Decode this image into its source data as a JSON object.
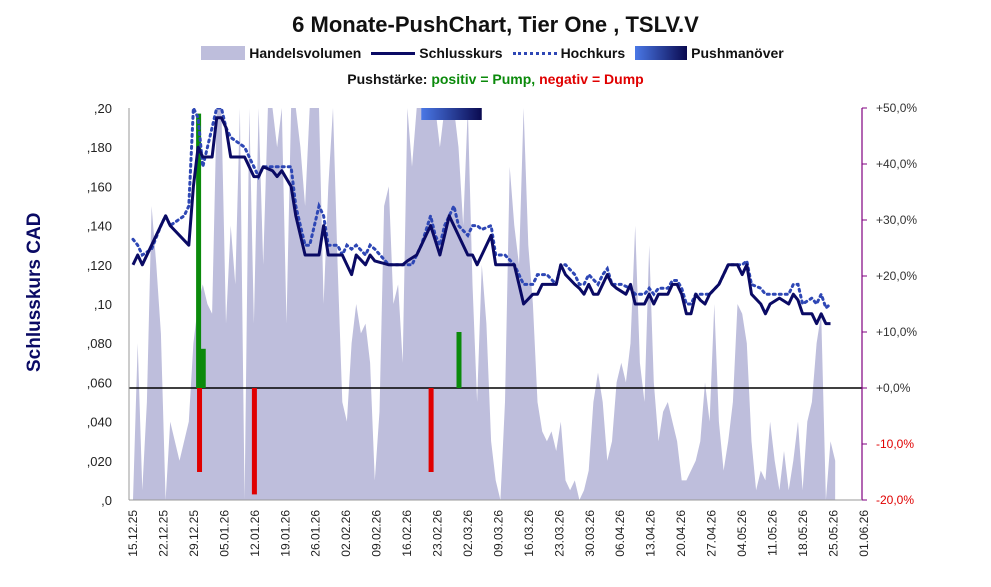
{
  "chart_data": {
    "type": "line",
    "title": "6 Monate-PushChart, Tier One , TSLV.V",
    "legend": {
      "volume": "Handelsvolumen",
      "close": "Schlusskurs",
      "high": "Hochkurs",
      "push": "Pushmanöver"
    },
    "push_note": {
      "prefix": "Pushstärke:",
      "positive": "positiv = Pump,",
      "negative": "negativ = Dump"
    },
    "ylabel": "Schlusskurs CAD",
    "ylim": [
      0,
      0.2
    ],
    "y_ticks": [
      ",0",
      ",020",
      ",040",
      ",060",
      ",080",
      ",10",
      ",120",
      ",140",
      ",160",
      ",180",
      ",20"
    ],
    "y2_ticks": [
      "-20,0%",
      "-10,0%",
      "+0,0%",
      "+10,0%",
      "+20,0%",
      "+30,0%",
      "+40,0%",
      "+50,0%"
    ],
    "y2lim": [
      -20,
      50
    ],
    "x_ticks": [
      "15.12.25",
      "22.12.25",
      "29.12.25",
      "05.01.26",
      "12.01.26",
      "19.01.26",
      "26.01.26",
      "02.02.26",
      "09.02.26",
      "16.02.26",
      "23.02.26",
      "02.03.26",
      "09.03.26",
      "16.03.26",
      "23.03.26",
      "30.03.26",
      "06.04.26",
      "13.04.26",
      "20.04.26",
      "27.04.26",
      "04.05.26",
      "11.05.26",
      "18.05.26",
      "25.05.26",
      "01.06.26"
    ],
    "close": [
      [
        0,
        0.12
      ],
      [
        1,
        0.125
      ],
      [
        2,
        0.12
      ],
      [
        4,
        0.13
      ],
      [
        6,
        0.14
      ],
      [
        7,
        0.145
      ],
      [
        8,
        0.14
      ],
      [
        12,
        0.13
      ],
      [
        13,
        0.16
      ],
      [
        14,
        0.18
      ],
      [
        15,
        0.175
      ],
      [
        17,
        0.175
      ],
      [
        18,
        0.195
      ],
      [
        19,
        0.195
      ],
      [
        20,
        0.19
      ],
      [
        21,
        0.175
      ],
      [
        24,
        0.175
      ],
      [
        26,
        0.165
      ],
      [
        27,
        0.165
      ],
      [
        28,
        0.17
      ],
      [
        30,
        0.168
      ],
      [
        31,
        0.165
      ],
      [
        32,
        0.168
      ],
      [
        34,
        0.16
      ],
      [
        35,
        0.145
      ],
      [
        37,
        0.125
      ],
      [
        40,
        0.125
      ],
      [
        41,
        0.14
      ],
      [
        42,
        0.125
      ],
      [
        45,
        0.125
      ],
      [
        46,
        0.12
      ],
      [
        47,
        0.115
      ],
      [
        48,
        0.125
      ],
      [
        50,
        0.12
      ],
      [
        51,
        0.125
      ],
      [
        52,
        0.122
      ],
      [
        55,
        0.12
      ],
      [
        58,
        0.12
      ],
      [
        59,
        0.122
      ],
      [
        61,
        0.125
      ],
      [
        63,
        0.135
      ],
      [
        64,
        0.14
      ],
      [
        66,
        0.125
      ],
      [
        67,
        0.135
      ],
      [
        68,
        0.145
      ],
      [
        70,
        0.135
      ],
      [
        72,
        0.125
      ],
      [
        73,
        0.125
      ],
      [
        74,
        0.12
      ],
      [
        75,
        0.125
      ],
      [
        77,
        0.135
      ],
      [
        78,
        0.12
      ],
      [
        82,
        0.12
      ],
      [
        83,
        0.11
      ],
      [
        84,
        0.1
      ],
      [
        86,
        0.105
      ],
      [
        87,
        0.105
      ],
      [
        88,
        0.11
      ],
      [
        89,
        0.11
      ],
      [
        91,
        0.11
      ],
      [
        92,
        0.12
      ],
      [
        93,
        0.115
      ],
      [
        95,
        0.11
      ],
      [
        96,
        0.108
      ],
      [
        97,
        0.105
      ],
      [
        98,
        0.11
      ],
      [
        99,
        0.105
      ],
      [
        100,
        0.105
      ],
      [
        101,
        0.11
      ],
      [
        102,
        0.115
      ],
      [
        103,
        0.11
      ],
      [
        104,
        0.108
      ],
      [
        106,
        0.105
      ],
      [
        107,
        0.11
      ],
      [
        108,
        0.1
      ],
      [
        109,
        0.1
      ],
      [
        110,
        0.1
      ],
      [
        111,
        0.105
      ],
      [
        112,
        0.1
      ],
      [
        113,
        0.105
      ],
      [
        115,
        0.105
      ],
      [
        116,
        0.11
      ],
      [
        117,
        0.11
      ],
      [
        118,
        0.105
      ],
      [
        119,
        0.095
      ],
      [
        120,
        0.095
      ],
      [
        121,
        0.105
      ],
      [
        122,
        0.102
      ],
      [
        123,
        0.1
      ],
      [
        124,
        0.105
      ],
      [
        126,
        0.11
      ],
      [
        128,
        0.12
      ],
      [
        130,
        0.12
      ],
      [
        131,
        0.115
      ],
      [
        132,
        0.12
      ],
      [
        133,
        0.105
      ],
      [
        135,
        0.1
      ],
      [
        136,
        0.095
      ],
      [
        137,
        0.1
      ],
      [
        139,
        0.103
      ],
      [
        141,
        0.1
      ],
      [
        142,
        0.105
      ],
      [
        143,
        0.102
      ],
      [
        144,
        0.095
      ],
      [
        146,
        0.095
      ],
      [
        147,
        0.09
      ],
      [
        148,
        0.095
      ],
      [
        149,
        0.09
      ],
      [
        150,
        0.09
      ]
    ],
    "high": [
      [
        0,
        0.133
      ],
      [
        1,
        0.13
      ],
      [
        2,
        0.125
      ],
      [
        4,
        0.128
      ],
      [
        6,
        0.14
      ],
      [
        7,
        0.145
      ],
      [
        8,
        0.14
      ],
      [
        11,
        0.145
      ],
      [
        12,
        0.15
      ],
      [
        13,
        0.2
      ],
      [
        14,
        0.195
      ],
      [
        15,
        0.17
      ],
      [
        17,
        0.19
      ],
      [
        18,
        0.2
      ],
      [
        19,
        0.2
      ],
      [
        20,
        0.19
      ],
      [
        21,
        0.185
      ],
      [
        24,
        0.18
      ],
      [
        26,
        0.17
      ],
      [
        27,
        0.165
      ],
      [
        28,
        0.17
      ],
      [
        34,
        0.17
      ],
      [
        35,
        0.15
      ],
      [
        36,
        0.14
      ],
      [
        37,
        0.13
      ],
      [
        38,
        0.13
      ],
      [
        39,
        0.14
      ],
      [
        40,
        0.15
      ],
      [
        41,
        0.145
      ],
      [
        42,
        0.13
      ],
      [
        44,
        0.13
      ],
      [
        45,
        0.125
      ],
      [
        46,
        0.13
      ],
      [
        47,
        0.128
      ],
      [
        48,
        0.13
      ],
      [
        50,
        0.125
      ],
      [
        51,
        0.13
      ],
      [
        52,
        0.128
      ],
      [
        55,
        0.12
      ],
      [
        60,
        0.12
      ],
      [
        62,
        0.13
      ],
      [
        64,
        0.145
      ],
      [
        65,
        0.135
      ],
      [
        66,
        0.13
      ],
      [
        67,
        0.14
      ],
      [
        69,
        0.15
      ],
      [
        70,
        0.14
      ],
      [
        72,
        0.135
      ],
      [
        73,
        0.14
      ],
      [
        74,
        0.14
      ],
      [
        75,
        0.138
      ],
      [
        77,
        0.14
      ],
      [
        78,
        0.125
      ],
      [
        80,
        0.125
      ],
      [
        82,
        0.12
      ],
      [
        83,
        0.115
      ],
      [
        84,
        0.11
      ],
      [
        86,
        0.11
      ],
      [
        87,
        0.115
      ],
      [
        88,
        0.115
      ],
      [
        89,
        0.115
      ],
      [
        91,
        0.11
      ],
      [
        92,
        0.12
      ],
      [
        93,
        0.12
      ],
      [
        95,
        0.115
      ],
      [
        96,
        0.11
      ],
      [
        97,
        0.11
      ],
      [
        98,
        0.115
      ],
      [
        100,
        0.11
      ],
      [
        101,
        0.115
      ],
      [
        102,
        0.118
      ],
      [
        103,
        0.11
      ],
      [
        104,
        0.11
      ],
      [
        105,
        0.11
      ],
      [
        107,
        0.108
      ],
      [
        108,
        0.105
      ],
      [
        110,
        0.105
      ],
      [
        111,
        0.108
      ],
      [
        112,
        0.105
      ],
      [
        113,
        0.108
      ],
      [
        115,
        0.108
      ],
      [
        116,
        0.112
      ],
      [
        117,
        0.112
      ],
      [
        118,
        0.108
      ],
      [
        119,
        0.1
      ],
      [
        120,
        0.1
      ],
      [
        121,
        0.105
      ],
      [
        123,
        0.105
      ],
      [
        124,
        0.105
      ],
      [
        126,
        0.11
      ],
      [
        128,
        0.12
      ],
      [
        130,
        0.12
      ],
      [
        131,
        0.12
      ],
      [
        132,
        0.122
      ],
      [
        133,
        0.11
      ],
      [
        135,
        0.108
      ],
      [
        136,
        0.105
      ],
      [
        137,
        0.105
      ],
      [
        139,
        0.105
      ],
      [
        141,
        0.105
      ],
      [
        142,
        0.11
      ],
      [
        143,
        0.11
      ],
      [
        144,
        0.1
      ],
      [
        146,
        0.103
      ],
      [
        147,
        0.1
      ],
      [
        148,
        0.105
      ],
      [
        149,
        0.098
      ],
      [
        150,
        0.1
      ]
    ],
    "volume": [
      [
        0,
        0.0
      ],
      [
        1,
        0.08
      ],
      [
        2,
        0.005
      ],
      [
        3,
        0.05
      ],
      [
        4,
        0.15
      ],
      [
        5,
        0.12
      ],
      [
        6,
        0.085
      ],
      [
        7,
        0.0
      ],
      [
        8,
        0.04
      ],
      [
        10,
        0.02
      ],
      [
        12,
        0.04
      ],
      [
        13,
        0.08
      ],
      [
        14,
        0.1
      ],
      [
        15,
        0.11
      ],
      [
        16,
        0.1
      ],
      [
        17,
        0.095
      ],
      [
        18,
        0.25
      ],
      [
        19,
        0.25
      ],
      [
        20,
        0.09
      ],
      [
        21,
        0.14
      ],
      [
        22,
        0.11
      ],
      [
        23,
        0.22
      ],
      [
        24,
        0.0
      ],
      [
        25,
        0.22
      ],
      [
        26,
        0.09
      ],
      [
        27,
        0.22
      ],
      [
        28,
        0.12
      ],
      [
        29,
        0.21
      ],
      [
        30,
        0.24
      ],
      [
        31,
        0.18
      ],
      [
        32,
        0.2
      ],
      [
        33,
        0.09
      ],
      [
        34,
        0.2
      ],
      [
        35,
        0.22
      ],
      [
        36,
        0.18
      ],
      [
        37,
        0.15
      ],
      [
        38,
        0.2
      ],
      [
        39,
        0.22
      ],
      [
        40,
        0.21
      ],
      [
        41,
        0.1
      ],
      [
        42,
        0.16
      ],
      [
        43,
        0.22
      ],
      [
        44,
        0.12
      ],
      [
        45,
        0.05
      ],
      [
        46,
        0.04
      ],
      [
        47,
        0.08
      ],
      [
        48,
        0.1
      ],
      [
        49,
        0.085
      ],
      [
        50,
        0.09
      ],
      [
        51,
        0.07
      ],
      [
        52,
        0.01
      ],
      [
        53,
        0.045
      ],
      [
        54,
        0.15
      ],
      [
        55,
        0.16
      ],
      [
        56,
        0.1
      ],
      [
        57,
        0.11
      ],
      [
        58,
        0.07
      ],
      [
        59,
        0.22
      ],
      [
        60,
        0.17
      ],
      [
        61,
        0.22
      ],
      [
        62,
        0.2
      ],
      [
        63,
        0.22
      ],
      [
        64,
        0.21
      ],
      [
        65,
        0.22
      ],
      [
        66,
        0.18
      ],
      [
        67,
        0.22
      ],
      [
        68,
        0.2
      ],
      [
        69,
        0.22
      ],
      [
        70,
        0.18
      ],
      [
        71,
        0.14
      ],
      [
        72,
        0.22
      ],
      [
        73,
        0.11
      ],
      [
        74,
        0.05
      ],
      [
        75,
        0.12
      ],
      [
        76,
        0.09
      ],
      [
        77,
        0.03
      ],
      [
        78,
        0.01
      ],
      [
        79,
        0.0
      ],
      [
        80,
        0.05
      ],
      [
        81,
        0.17
      ],
      [
        82,
        0.14
      ],
      [
        83,
        0.12
      ],
      [
        84,
        0.22
      ],
      [
        85,
        0.13
      ],
      [
        86,
        0.1
      ],
      [
        87,
        0.05
      ],
      [
        88,
        0.035
      ],
      [
        89,
        0.03
      ],
      [
        90,
        0.035
      ],
      [
        91,
        0.025
      ],
      [
        92,
        0.04
      ],
      [
        93,
        0.01
      ],
      [
        94,
        0.005
      ],
      [
        95,
        0.01
      ],
      [
        96,
        0.0
      ],
      [
        97,
        0.005
      ],
      [
        98,
        0.015
      ],
      [
        99,
        0.05
      ],
      [
        100,
        0.065
      ],
      [
        101,
        0.05
      ],
      [
        102,
        0.02
      ],
      [
        103,
        0.03
      ],
      [
        104,
        0.06
      ],
      [
        105,
        0.07
      ],
      [
        106,
        0.06
      ],
      [
        107,
        0.08
      ],
      [
        108,
        0.14
      ],
      [
        109,
        0.07
      ],
      [
        110,
        0.05
      ],
      [
        111,
        0.13
      ],
      [
        112,
        0.06
      ],
      [
        113,
        0.03
      ],
      [
        114,
        0.045
      ],
      [
        115,
        0.05
      ],
      [
        116,
        0.04
      ],
      [
        117,
        0.03
      ],
      [
        118,
        0.01
      ],
      [
        119,
        0.01
      ],
      [
        120,
        0.015
      ],
      [
        121,
        0.02
      ],
      [
        122,
        0.03
      ],
      [
        123,
        0.06
      ],
      [
        124,
        0.04
      ],
      [
        125,
        0.1
      ],
      [
        126,
        0.04
      ],
      [
        127,
        0.015
      ],
      [
        128,
        0.03
      ],
      [
        129,
        0.05
      ],
      [
        130,
        0.1
      ],
      [
        131,
        0.095
      ],
      [
        132,
        0.08
      ],
      [
        133,
        0.03
      ],
      [
        134,
        0.005
      ],
      [
        135,
        0.015
      ],
      [
        136,
        0.01
      ],
      [
        137,
        0.04
      ],
      [
        138,
        0.02
      ],
      [
        139,
        0.005
      ],
      [
        140,
        0.025
      ],
      [
        141,
        0.005
      ],
      [
        142,
        0.02
      ],
      [
        143,
        0.04
      ],
      [
        144,
        0.005
      ],
      [
        145,
        0.04
      ],
      [
        146,
        0.05
      ],
      [
        147,
        0.08
      ],
      [
        148,
        0.095
      ],
      [
        149,
        0.0
      ],
      [
        150,
        0.03
      ],
      [
        151,
        0.02
      ]
    ],
    "push_strength_percent": [
      [
        14,
        49
      ],
      [
        15,
        7
      ],
      [
        14.2,
        -15
      ],
      [
        26,
        -19
      ],
      [
        64,
        -15
      ],
      [
        70,
        10
      ]
    ],
    "push_marker": [
      [
        62,
        75
      ]
    ],
    "grid": false,
    "legend_position": "top"
  },
  "colors": {
    "close": "#0A0A64",
    "high": "#2E47B5",
    "volume": "#BEBEDC",
    "pump": "#0B8A0B",
    "dump": "#E00000",
    "axis_secondary": "#800080"
  }
}
